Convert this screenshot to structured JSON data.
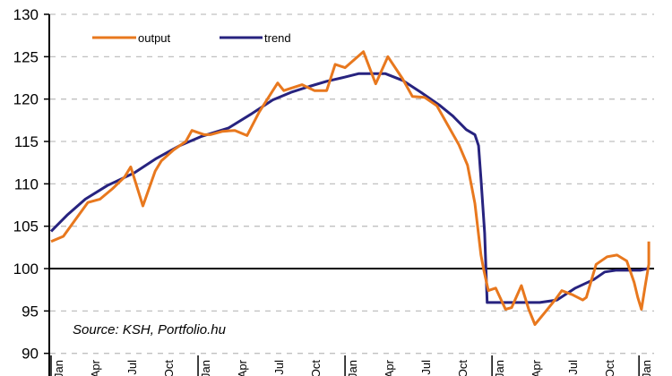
{
  "chart_data": {
    "type": "line",
    "title": "",
    "xlabel": "",
    "ylabel": "",
    "ylim": [
      90,
      130
    ],
    "yticks": [
      90,
      95,
      100,
      105,
      110,
      115,
      120,
      125,
      130
    ],
    "grid": {
      "horizontal": true,
      "style": "dashed",
      "color": "#c0c0c0"
    },
    "reference_line": {
      "value": 100,
      "color": "#000000"
    },
    "x_tick_labels": [
      "Jan",
      "Apr",
      "Jul",
      "Oct",
      "Jan",
      "Apr",
      "Jul",
      "Oct",
      "Jan",
      "Apr",
      "Jul",
      "Oct",
      "Jan",
      "Apr",
      "Jul",
      "Oct",
      "Jan"
    ],
    "x_tick_months": [
      0,
      3,
      6,
      9,
      12,
      15,
      18,
      21,
      24,
      27,
      30,
      33,
      36,
      39,
      42,
      45,
      48
    ],
    "x_year_boundaries": [
      0,
      12,
      24,
      36,
      48
    ],
    "legend": {
      "position": "top-left",
      "entries": [
        "output",
        "trend"
      ]
    },
    "annotation": "Source: KSH, Portfolio.hu",
    "series": [
      {
        "name": "output",
        "color": "#e8781e",
        "points": [
          [
            0,
            103.2
          ],
          [
            1,
            103.8
          ],
          [
            2,
            105.8
          ],
          [
            3,
            107.8
          ],
          [
            4,
            108.2
          ],
          [
            5,
            109.4
          ],
          [
            6,
            110.8
          ],
          [
            6.5,
            112.0
          ],
          [
            7.5,
            107.4
          ],
          [
            8.5,
            111.5
          ],
          [
            9,
            112.7
          ],
          [
            10,
            114.0
          ],
          [
            11,
            115.0
          ],
          [
            11.5,
            116.3
          ],
          [
            12.5,
            115.8
          ],
          [
            13,
            115.8
          ],
          [
            14,
            116.2
          ],
          [
            15,
            116.3
          ],
          [
            16,
            115.7
          ],
          [
            17,
            118.5
          ],
          [
            18.5,
            121.9
          ],
          [
            19,
            121.0
          ],
          [
            20.5,
            121.7
          ],
          [
            21.5,
            121.0
          ],
          [
            22.5,
            121.0
          ],
          [
            23.2,
            124.1
          ],
          [
            24,
            123.7
          ],
          [
            25.5,
            125.6
          ],
          [
            26.5,
            121.8
          ],
          [
            27.5,
            125.0
          ],
          [
            28.7,
            122.4
          ],
          [
            29.5,
            120.3
          ],
          [
            30.5,
            120.2
          ],
          [
            31.5,
            119.2
          ],
          [
            32.4,
            116.9
          ],
          [
            33.3,
            114.6
          ],
          [
            34,
            112.2
          ],
          [
            34.6,
            107.7
          ],
          [
            35.1,
            101.6
          ],
          [
            35.3,
            100.0
          ],
          [
            35.7,
            97.4
          ],
          [
            36.3,
            97.7
          ],
          [
            37.1,
            95.2
          ],
          [
            37.6,
            95.4
          ],
          [
            38.4,
            98.0
          ],
          [
            39,
            95.2
          ],
          [
            39.5,
            93.4
          ],
          [
            40.3,
            94.8
          ],
          [
            41.2,
            96.4
          ],
          [
            41.7,
            97.4
          ],
          [
            42.6,
            96.9
          ],
          [
            43.4,
            96.3
          ],
          [
            43.7,
            96.6
          ],
          [
            44.5,
            100.5
          ],
          [
            45.4,
            101.4
          ],
          [
            46.2,
            101.6
          ],
          [
            47,
            100.9
          ],
          [
            47.6,
            98.4
          ],
          [
            47.9,
            96.6
          ],
          [
            48.2,
            95.2
          ],
          [
            48.5,
            97.9
          ],
          [
            48.8,
            100.5
          ],
          [
            48.8,
            103.2
          ]
        ]
      },
      {
        "name": "trend",
        "color": "#27237f",
        "points": [
          [
            0,
            104.4
          ],
          [
            1.3,
            106.3
          ],
          [
            2.8,
            108.2
          ],
          [
            4.6,
            109.8
          ],
          [
            6.8,
            111.3
          ],
          [
            8.6,
            113.0
          ],
          [
            10.5,
            114.5
          ],
          [
            12.3,
            115.6
          ],
          [
            14.5,
            116.6
          ],
          [
            16.3,
            118.2
          ],
          [
            18.1,
            119.9
          ],
          [
            19.6,
            120.8
          ],
          [
            21.1,
            121.5
          ],
          [
            22.5,
            122.1
          ],
          [
            24,
            122.6
          ],
          [
            25.1,
            123.0
          ],
          [
            27.3,
            123.0
          ],
          [
            28.7,
            122.2
          ],
          [
            30.2,
            120.8
          ],
          [
            31.7,
            119.3
          ],
          [
            32.8,
            118.0
          ],
          [
            33.9,
            116.4
          ],
          [
            34.6,
            115.8
          ],
          [
            34.9,
            114.5
          ],
          [
            35.1,
            110.6
          ],
          [
            35.4,
            104.2
          ],
          [
            35.6,
            96.0
          ],
          [
            36.9,
            96.0
          ],
          [
            39.9,
            96.0
          ],
          [
            41.3,
            96.3
          ],
          [
            42.8,
            97.7
          ],
          [
            44.3,
            98.7
          ],
          [
            45.2,
            99.6
          ],
          [
            46.1,
            99.8
          ],
          [
            47.2,
            99.8
          ],
          [
            48.1,
            99.8
          ],
          [
            48.7,
            100.0
          ]
        ]
      }
    ]
  },
  "legend": {
    "output_label": "output",
    "trend_label": "trend"
  },
  "y_axis": {
    "labels": [
      "130",
      "125",
      "120",
      "115",
      "110",
      "105",
      "100",
      "95",
      "90"
    ]
  },
  "annotation": {
    "source_text": "Source: KSH, Portfolio.hu"
  }
}
